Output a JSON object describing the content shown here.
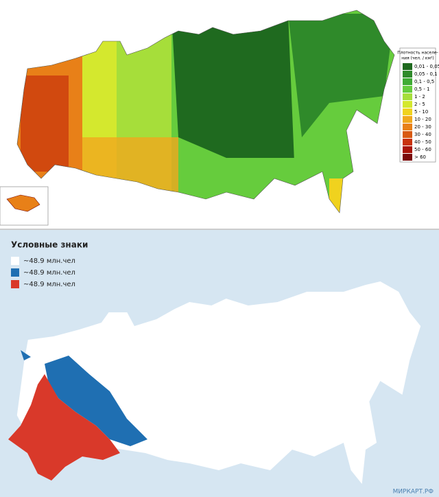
{
  "top_map": {
    "legend": {
      "title_lines": [
        "Плотность населе-",
        "ния (чел. / км²)"
      ],
      "items": [
        {
          "label": "0,01 - 0,05",
          "color": "#1f6a1f"
        },
        {
          "label": "0,05 - 0,1",
          "color": "#2f8a2a"
        },
        {
          "label": "0,1 - 0,5",
          "color": "#3fab34"
        },
        {
          "label": "0,5 - 1",
          "color": "#66cc3d"
        },
        {
          "label": "1 - 2",
          "color": "#a6de3a"
        },
        {
          "label": "2 - 5",
          "color": "#d4e82e"
        },
        {
          "label": "5 - 10",
          "color": "#f0d21e"
        },
        {
          "label": "10 - 20",
          "color": "#f0a81e"
        },
        {
          "label": "20 - 30",
          "color": "#e88018"
        },
        {
          "label": "30 - 40",
          "color": "#d85a12"
        },
        {
          "label": "40 - 50",
          "color": "#c8320c"
        },
        {
          "label": "50 - 60",
          "color": "#a81408"
        },
        {
          "label": "> 60",
          "color": "#7a0a0a"
        }
      ]
    }
  },
  "bottom_map": {
    "legend": {
      "title": "Условные знаки",
      "items": [
        {
          "label": "~48.9 млн.чел",
          "color": "#ffffff"
        },
        {
          "label": "~48.9 млн.чел",
          "color": "#1f6fb2"
        },
        {
          "label": "~48.9 млн.чел",
          "color": "#d9392a"
        }
      ]
    },
    "watermark": "МИРКАРТ.РФ"
  }
}
